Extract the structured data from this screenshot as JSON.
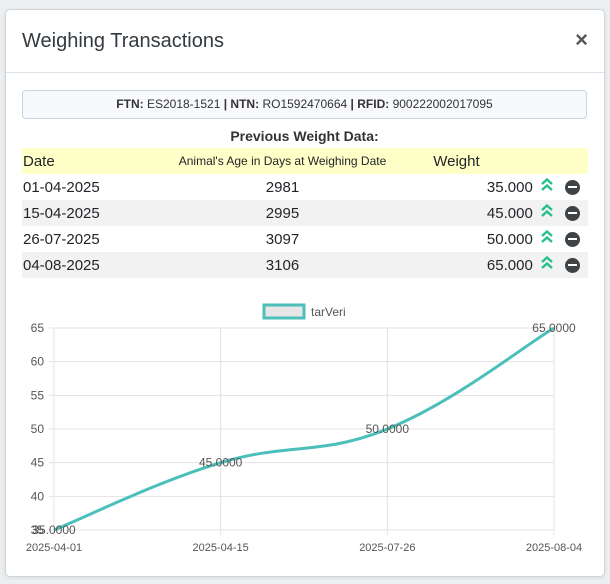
{
  "header": {
    "title": "Weighing Transactions",
    "close_label": "×"
  },
  "identifiers": {
    "ftn_label": "FTN:",
    "ftn_value": "ES2018-1521",
    "ntn_label": "NTN:",
    "ntn_value": "RO1592470664",
    "rfid_label": "RFID:",
    "rfid_value": "900222002017095",
    "separator": "|"
  },
  "previous": {
    "title": "Previous Weight Data:",
    "columns": {
      "date": "Date",
      "age": "Animal's Age in Days at Weighing Date",
      "weight": "Weight"
    },
    "rows": [
      {
        "date": "01-04-2025",
        "age": "2981",
        "weight": "35.000"
      },
      {
        "date": "15-04-2025",
        "age": "2995",
        "weight": "45.000"
      },
      {
        "date": "26-07-2025",
        "age": "3097",
        "weight": "50.000"
      },
      {
        "date": "04-08-2025",
        "age": "3106",
        "weight": "65.000"
      }
    ]
  },
  "colors": {
    "line": "#4bbfb9",
    "up_icon": "#27c08a",
    "header_bg": "#ffffc8"
  },
  "chart_data": {
    "type": "line",
    "categories": [
      "2025-04-01",
      "2025-04-15",
      "2025-07-26",
      "2025-08-04"
    ],
    "series": [
      {
        "name": "tarVeri",
        "values": [
          35,
          45,
          50,
          65
        ],
        "labels": [
          "35.0000",
          "45.0000",
          "50.0000",
          "65.0000"
        ]
      }
    ],
    "yticks": [
      "35",
      "40",
      "45",
      "50",
      "55",
      "60",
      "65"
    ],
    "ylim": [
      35,
      65
    ],
    "grid": true,
    "legend": "top-center"
  }
}
